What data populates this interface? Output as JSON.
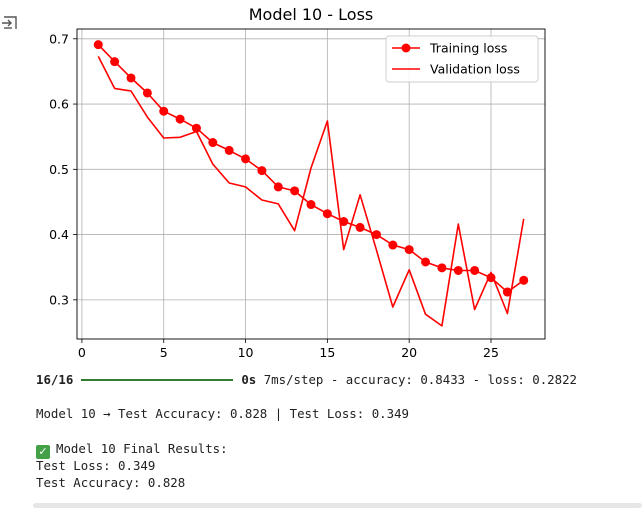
{
  "output_icon": "output-toggle-icon",
  "chart_data": {
    "type": "line",
    "title": "Model 10 - Loss",
    "xlabel": "",
    "ylabel": "",
    "xlim": [
      -0.3,
      28.3
    ],
    "ylim": [
      0.24,
      0.715
    ],
    "xticks": [
      0,
      5,
      10,
      15,
      20,
      25
    ],
    "yticks": [
      0.3,
      0.4,
      0.5,
      0.6,
      0.7
    ],
    "grid": true,
    "legend_position": "top-right",
    "series": [
      {
        "name": "Training loss",
        "color": "#ff0000",
        "marker": "o",
        "x": [
          1,
          2,
          3,
          4,
          5,
          6,
          7,
          8,
          9,
          10,
          11,
          12,
          13,
          14,
          15,
          16,
          17,
          18,
          19,
          20,
          21,
          22,
          23,
          24,
          25,
          26,
          27
        ],
        "y": [
          0.691,
          0.665,
          0.64,
          0.617,
          0.589,
          0.577,
          0.563,
          0.541,
          0.529,
          0.516,
          0.498,
          0.473,
          0.467,
          0.446,
          0.432,
          0.42,
          0.411,
          0.4,
          0.384,
          0.377,
          0.358,
          0.349,
          0.345,
          0.345,
          0.334,
          0.312,
          0.33
        ]
      },
      {
        "name": "Validation loss",
        "color": "#ff0000",
        "marker": "",
        "x": [
          1,
          2,
          3,
          4,
          5,
          6,
          7,
          8,
          9,
          10,
          11,
          12,
          13,
          14,
          15,
          16,
          17,
          18,
          19,
          20,
          21,
          22,
          23,
          24,
          25,
          26,
          27
        ],
        "y": [
          0.673,
          0.624,
          0.62,
          0.58,
          0.548,
          0.549,
          0.558,
          0.508,
          0.479,
          0.473,
          0.453,
          0.447,
          0.406,
          0.502,
          0.574,
          0.377,
          0.461,
          0.376,
          0.289,
          0.346,
          0.278,
          0.26,
          0.416,
          0.285,
          0.342,
          0.279,
          0.424
        ]
      }
    ]
  },
  "console": {
    "progress": {
      "steps": "16/16",
      "fraction": 1.0,
      "time": "0s",
      "rest": " 7ms/step - accuracy: 0.8433 - loss: 0.2822"
    },
    "eval_line": "Model 10 → Test Accuracy: 0.828 | Test Loss: 0.349",
    "final_header": "Model 10 Final Results:",
    "final_icon": "check-mark-icon",
    "test_loss": "Test Loss: 0.349",
    "test_accuracy": "Test Accuracy: 0.828"
  }
}
